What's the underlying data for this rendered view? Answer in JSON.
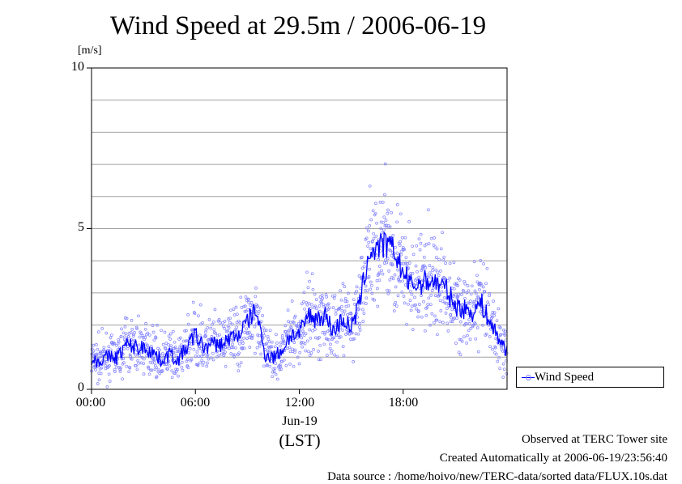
{
  "title": "Wind Speed at 29.5m / 2006-06-19",
  "unit_label": "[m/s]",
  "date_label": "Jun-19",
  "lst_label": "(LST)",
  "legend_label": "Wind Speed",
  "footer": {
    "observed": "Observed at TERC Tower site",
    "created": "Created Automatically at 2006-06-19/23:56:40",
    "source": "Data source : /home/hoivo/new/TERC-data/sorted  data/FLUX.10s.dat"
  },
  "colors": {
    "line": "#0000ff",
    "scatter": "#8080ff",
    "grid": "#a0a0a0",
    "axis": "#000000"
  },
  "chart_data": {
    "type": "line",
    "title": "Wind Speed at 29.5m / 2006-06-19",
    "xlabel": "(LST)",
    "ylabel": "[m/s]",
    "x_unit": "hour of day (LST)",
    "xlim": [
      0,
      24
    ],
    "ylim": [
      0,
      10
    ],
    "grid": true,
    "legend_position": "outside-bottom-right",
    "x_ticks": [
      "00:00",
      "06:00",
      "12:00",
      "18:00"
    ],
    "x_tick_values": [
      0,
      6,
      12,
      18
    ],
    "y_ticks": [
      "0",
      "5",
      "10"
    ],
    "y_tick_values": [
      0,
      5,
      10
    ],
    "series": [
      {
        "name": "Wind Speed",
        "style": "line-with-scatter-points",
        "x": [
          0,
          0.5,
          1,
          1.5,
          2,
          2.5,
          3,
          3.5,
          4,
          4.5,
          5,
          5.5,
          6,
          6.5,
          7,
          7.5,
          8,
          8.5,
          9,
          9.5,
          10,
          10.5,
          11,
          11.5,
          12,
          12.5,
          13,
          13.5,
          14,
          14.5,
          15,
          15.5,
          16,
          16.5,
          17,
          17.5,
          18,
          18.5,
          19,
          19.5,
          20,
          20.5,
          21,
          21.5,
          22,
          22.5,
          23,
          23.5,
          24
        ],
        "y": [
          0.9,
          0.9,
          1.0,
          1.0,
          1.4,
          1.3,
          1.3,
          1.2,
          0.9,
          1.1,
          0.9,
          1.3,
          1.7,
          1.3,
          1.4,
          1.4,
          1.6,
          1.7,
          2.1,
          2.5,
          1.1,
          1.0,
          1.2,
          1.7,
          1.7,
          2.3,
          2.2,
          2.3,
          1.8,
          2.2,
          1.9,
          2.7,
          4.2,
          4.4,
          4.5,
          4.3,
          3.6,
          3.2,
          3.3,
          3.4,
          3.3,
          3.1,
          2.6,
          2.5,
          2.4,
          2.7,
          2.1,
          1.6,
          1.2
        ]
      }
    ]
  }
}
